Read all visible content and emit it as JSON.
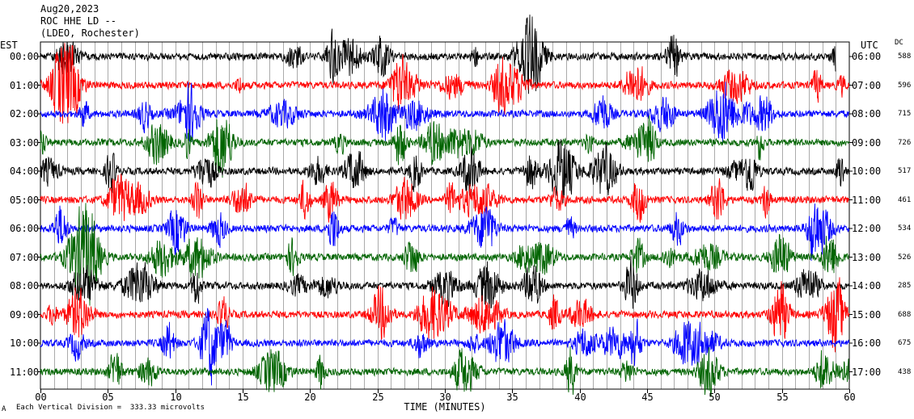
{
  "header": {
    "date": "Aug20,2023",
    "station": "ROC HHE LD --",
    "network": "(LDEO, Rochester)"
  },
  "left_axis_title": "EST",
  "right_axis_title": "UTC",
  "dc_title": "DC",
  "est_labels": [
    "00:00",
    "01:00",
    "02:00",
    "03:00",
    "04:00",
    "05:00",
    "06:00",
    "07:00",
    "08:00",
    "09:00",
    "10:00",
    "11:00"
  ],
  "utc_labels": [
    "06:00",
    "07:00",
    "08:00",
    "09:00",
    "10:00",
    "11:00",
    "12:00",
    "13:00",
    "14:00",
    "15:00",
    "16:00",
    "17:00"
  ],
  "dc_values": [
    "588",
    "596",
    "715",
    "726",
    "517",
    "461",
    "534",
    "526",
    "285",
    "688",
    "675",
    "438"
  ],
  "x_ticks": [
    "00",
    "05",
    "10",
    "15",
    "20",
    "25",
    "30",
    "35",
    "40",
    "45",
    "50",
    "55",
    "60"
  ],
  "x_label": "TIME (MINUTES)",
  "footer": {
    "mark": "A",
    "division": "Each Vertical Division =  333.33 microvolts"
  },
  "colors": {
    "trace_cycle": [
      "#000000",
      "#ff0000",
      "#0000ff",
      "#006400"
    ],
    "grid": "#000000",
    "background": "#ffffff"
  },
  "chart_data": {
    "type": "line",
    "title": "",
    "xlabel": "TIME (MINUTES)",
    "ylabel": "",
    "xlim": [
      0,
      60
    ],
    "x_tick_values": [
      0,
      5,
      10,
      15,
      20,
      25,
      30,
      35,
      40,
      45,
      50,
      55,
      60
    ],
    "series": [
      {
        "row": "00:00",
        "color": "#000000",
        "end_minute": 59
      },
      {
        "row": "01:00",
        "color": "#ff0000",
        "end_minute": 60
      },
      {
        "row": "02:00",
        "color": "#0000ff",
        "end_minute": 60
      },
      {
        "row": "03:00",
        "color": "#006400",
        "end_minute": 60
      },
      {
        "row": "04:00",
        "color": "#000000",
        "end_minute": 60
      },
      {
        "row": "05:00",
        "color": "#ff0000",
        "end_minute": 60
      },
      {
        "row": "06:00",
        "color": "#0000ff",
        "end_minute": 60
      },
      {
        "row": "07:00",
        "color": "#006400",
        "end_minute": 60
      },
      {
        "row": "08:00",
        "color": "#000000",
        "end_minute": 60
      },
      {
        "row": "09:00",
        "color": "#ff0000",
        "end_minute": 60
      },
      {
        "row": "10:00",
        "color": "#0000ff",
        "end_minute": 60
      },
      {
        "row": "11:00",
        "color": "#006400",
        "end_minute": 60
      }
    ],
    "grid": true
  }
}
